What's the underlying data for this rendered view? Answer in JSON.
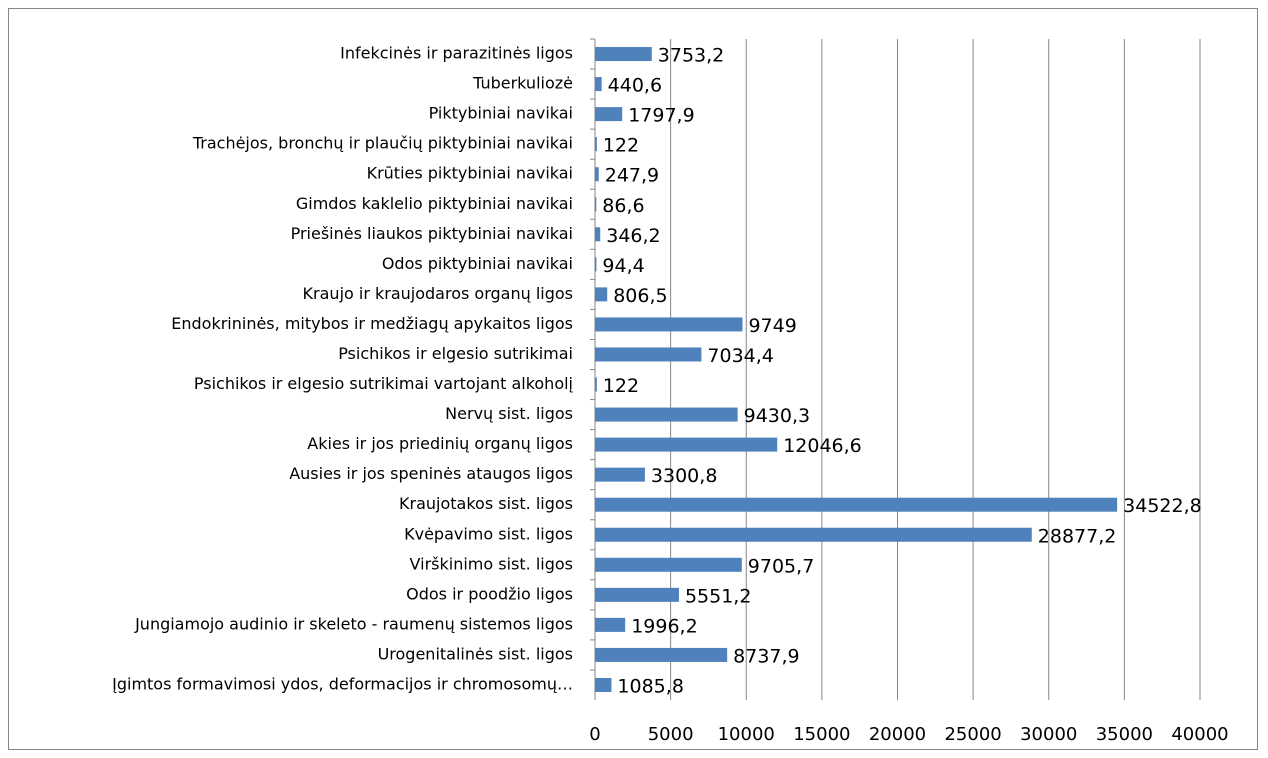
{
  "chart_data": {
    "type": "bar",
    "orientation": "horizontal",
    "categories": [
      "Infekcinės ir parazitinės ligos",
      "Tuberkuliozė",
      "Piktybiniai navikai",
      "Trachėjos, bronchų ir plaučių piktybiniai navikai",
      "Krūties piktybiniai navikai",
      "Gimdos kaklelio piktybiniai navikai",
      "Priešinės liaukos piktybiniai navikai",
      "Odos piktybiniai navikai",
      "Kraujo ir kraujodaros organų ligos",
      "Endokrininės, mitybos ir medžiagų apykaitos ligos",
      "Psichikos ir elgesio sutrikimai",
      "Psichikos ir elgesio sutrikimai vartojant alkoholį",
      "Nervų sist. ligos",
      "Akies ir jos priedinių organų ligos",
      "Ausies ir jos speninės ataugos ligos",
      "Kraujotakos sist. ligos",
      "Kvėpavimo sist. ligos",
      "Virškinimo sist. ligos",
      "Odos ir poodžio ligos",
      "Jungiamojo audinio ir skeleto - raumenų sistemos ligos",
      "Urogenitalinės sist. ligos",
      "Įgimtos formavimosi ydos, deformacijos ir chromosomų…"
    ],
    "values": [
      3753.2,
      440.6,
      1797.9,
      122,
      247.9,
      86.6,
      346.2,
      94.4,
      806.5,
      9749,
      7034.4,
      122,
      9430.3,
      12046.6,
      3300.8,
      34522.8,
      28877.2,
      9705.7,
      5551.2,
      1996.2,
      8737.9,
      1085.8
    ],
    "value_labels": [
      "3753,2",
      "440,6",
      "1797,9",
      "122",
      "247,9",
      "86,6",
      "346,2",
      "94,4",
      "806,5",
      "9749",
      "7034,4",
      "122",
      "9430,3",
      "12046,6",
      "3300,8",
      "34522,8",
      "28877,2",
      "9705,7",
      "5551,2",
      "1996,2",
      "8737,9",
      "1085,8"
    ],
    "color": "#4f81bd",
    "xlim": [
      0,
      40000
    ],
    "xticks": [
      0,
      5000,
      10000,
      15000,
      20000,
      25000,
      30000,
      35000,
      40000
    ],
    "grid": true
  }
}
